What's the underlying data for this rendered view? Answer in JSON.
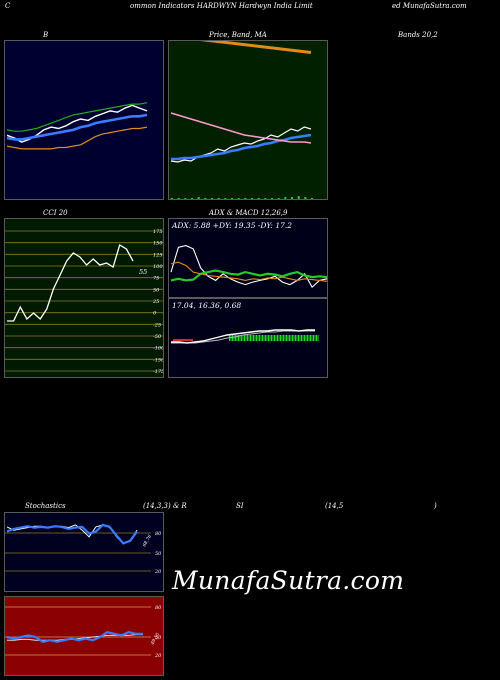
{
  "header": {
    "left": "C",
    "mid": "ommon  Indicators HARDWYN  Hardwyn  India  Limit",
    "right": "ed MunafaSutra.com"
  },
  "titles": {
    "bollinger": "B",
    "price": "Price,  Band,  MA",
    "bands": "Bands 20,2",
    "cci": "CCI 20",
    "adx_macd": "ADX  & MACD 12,26,9",
    "stoch": "Stochastics",
    "stoch_params": "(14,3,3) & R",
    "rsi": "SI",
    "rsi_params": "(14,5",
    "rsi_close": ")"
  },
  "watermark": "MunafaSutra.com",
  "colors": {
    "bollinger_bg": "#000030",
    "price_bg": "#002000",
    "cci_bg": "#001a00",
    "adx_bg": "#000018",
    "stoch_bg": "#000020",
    "rsi_bg": "#8b0000",
    "blue": "#3a7bff",
    "orange": "#e08a1e",
    "green": "#22cc22",
    "white": "#ffffff"
  },
  "chart_data": [
    {
      "type": "line",
      "panel": "bollinger",
      "series": [
        {
          "role": "price",
          "color": "#ffffff",
          "values": [
            60,
            58,
            55,
            57,
            60,
            64,
            66,
            65,
            67,
            70,
            72,
            71,
            74,
            76,
            78,
            77,
            80,
            82,
            80,
            78
          ]
        },
        {
          "role": "middle",
          "color": "#3a7bff",
          "values": [
            58,
            57,
            57,
            58,
            59,
            60,
            61,
            62,
            63,
            64,
            66,
            67,
            69,
            70,
            71,
            72,
            73,
            74,
            74,
            75
          ]
        },
        {
          "role": "upper",
          "color": "#22aa22",
          "values": [
            64,
            63,
            63,
            64,
            65,
            67,
            69,
            71,
            73,
            75,
            76,
            77,
            78,
            79,
            80,
            81,
            82,
            83,
            83,
            84
          ]
        },
        {
          "role": "lower",
          "color": "#e08a1e",
          "values": [
            52,
            51,
            50,
            50,
            50,
            50,
            50,
            51,
            51,
            52,
            53,
            56,
            59,
            61,
            62,
            63,
            64,
            65,
            65,
            66
          ]
        }
      ]
    },
    {
      "type": "line",
      "panel": "price",
      "series": [
        {
          "role": "price",
          "color": "#ffffff",
          "values": [
            40,
            39,
            41,
            40,
            44,
            46,
            48,
            52,
            50,
            54,
            56,
            58,
            57,
            60,
            62,
            66,
            64,
            68,
            72,
            70,
            74,
            72
          ]
        },
        {
          "role": "ma_fast",
          "color": "#3a7bff",
          "values": [
            42,
            42,
            43,
            43,
            44,
            45,
            46,
            47,
            48,
            50,
            51,
            53,
            54,
            55,
            57,
            58,
            60,
            61,
            63,
            64,
            65,
            66
          ]
        },
        {
          "role": "ma_slow",
          "color": "#ff99cc",
          "values": [
            88,
            86,
            84,
            82,
            80,
            78,
            76,
            74,
            72,
            70,
            68,
            66,
            65,
            64,
            63,
            62,
            61,
            60,
            59,
            59,
            59,
            58
          ]
        },
        {
          "role": "band_upper",
          "color": "#e08a1e",
          "values": [
            120,
            119,
            118,
            117,
            116,
            115,
            114,
            113,
            112,
            111,
            110,
            109
          ]
        }
      ],
      "volume": [
        1,
        1,
        1,
        1,
        2,
        1,
        1,
        1,
        1,
        1,
        1,
        1,
        1,
        1,
        1,
        1,
        1,
        2,
        2,
        3,
        2,
        1
      ]
    },
    {
      "type": "line",
      "panel": "cci",
      "ticks": [
        "175",
        "150",
        "125",
        "100",
        "75",
        "50",
        "25",
        "0",
        "-25",
        "-50",
        "-100",
        "-150",
        "-175"
      ],
      "series": [
        {
          "role": "cci",
          "color": "#ffffff",
          "values": [
            -50,
            -50,
            -15,
            -45,
            -30,
            -45,
            -20,
            30,
            65,
            100,
            120,
            110,
            90,
            105,
            90,
            95,
            85,
            140,
            130,
            100
          ]
        }
      ],
      "last_label": "55"
    },
    {
      "type": "line",
      "panel": "adx_macd",
      "adx_text": "ADX: 5.88  +DY: 19.35 -DY: 17.2",
      "macd_text": "17.04,  16.36,  0.68",
      "series": [
        {
          "role": "adx",
          "color": "#ffffff",
          "values": [
            30,
            60,
            62,
            58,
            35,
            25,
            20,
            28,
            22,
            18,
            15,
            18,
            20,
            22,
            25,
            18,
            15,
            20,
            28,
            12,
            20,
            22
          ]
        },
        {
          "role": "plus_di",
          "color": "#22cc22",
          "values": [
            20,
            22,
            20,
            21,
            28,
            30,
            32,
            30,
            28,
            27,
            30,
            28,
            26,
            28,
            27,
            25,
            28,
            30,
            26,
            24,
            25,
            24
          ]
        },
        {
          "role": "minus_di",
          "color": "#e08a1e",
          "values": [
            40,
            42,
            38,
            30,
            28,
            26,
            25,
            24,
            23,
            22,
            20,
            22,
            21,
            23,
            22,
            24,
            22,
            20,
            22,
            21,
            20,
            19
          ]
        },
        {
          "role": "macd",
          "color": "#ffffff",
          "values": [
            5,
            5,
            4,
            5,
            6,
            8,
            10,
            12,
            13,
            14,
            15,
            16,
            16,
            17,
            17,
            17,
            16,
            17,
            17
          ]
        },
        {
          "role": "signal",
          "color": "#bbbbbb",
          "values": [
            4,
            4,
            4,
            4,
            5,
            6,
            7,
            9,
            10,
            12,
            13,
            14,
            15,
            15,
            16,
            16,
            16,
            16,
            16
          ]
        }
      ]
    },
    {
      "type": "line",
      "panel": "stochastics",
      "ticks": [
        "80",
        "50",
        "20"
      ],
      "series": [
        {
          "role": "k",
          "color": "#ffffff",
          "values": [
            85,
            80,
            82,
            84,
            86,
            86,
            84,
            85,
            86,
            84,
            88,
            80,
            70,
            85,
            88,
            86,
            70,
            60,
            65,
            80
          ]
        },
        {
          "role": "d",
          "color": "#3a7bff",
          "values": [
            78,
            82,
            84,
            86,
            84,
            85,
            84,
            86,
            85,
            82,
            84,
            85,
            75,
            78,
            88,
            85,
            72,
            60,
            64,
            78
          ]
        }
      ],
      "last_label": "68.76"
    },
    {
      "type": "line",
      "panel": "rsi",
      "ticks": [
        "80",
        "50",
        "20"
      ],
      "series": [
        {
          "role": "rsi",
          "color": "#3a7bff",
          "values": [
            50,
            48,
            50,
            52,
            50,
            44,
            46,
            44,
            46,
            48,
            46,
            48,
            46,
            50,
            56,
            54,
            52,
            56,
            54,
            54
          ]
        },
        {
          "role": "mfi",
          "color": "#dddddd",
          "values": [
            46,
            46,
            47,
            47,
            46,
            46,
            46,
            46,
            47,
            47,
            48,
            49,
            50,
            51,
            52,
            52,
            52,
            52,
            53,
            53
          ]
        }
      ],
      "last_label": "49.55"
    }
  ]
}
